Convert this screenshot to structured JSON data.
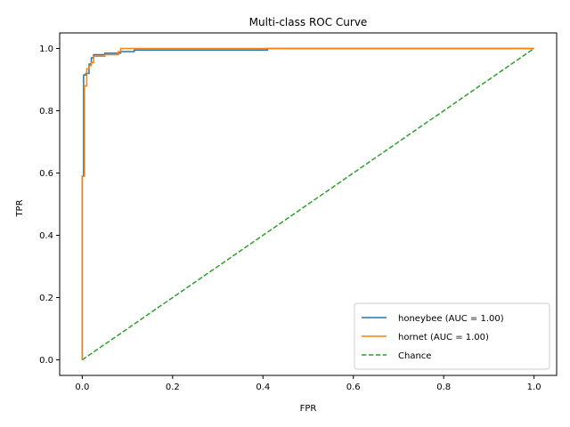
{
  "chart_data": {
    "type": "line",
    "title": "Multi-class ROC Curve",
    "xlabel": "FPR",
    "ylabel": "TPR",
    "xlim": [
      -0.05,
      1.05
    ],
    "ylim": [
      -0.05,
      1.05
    ],
    "xticks": [
      "0.0",
      "0.2",
      "0.4",
      "0.6",
      "0.8",
      "1.0"
    ],
    "yticks": [
      "0.0",
      "0.2",
      "0.4",
      "0.6",
      "0.8",
      "1.0"
    ],
    "grid": false,
    "legend_position": "lower-right",
    "series": [
      {
        "name": "honeybee (AUC = 1.00)",
        "color": "#1f77b4",
        "style": "solid",
        "points": [
          [
            0,
            0
          ],
          [
            0,
            0.59
          ],
          [
            0.003,
            0.59
          ],
          [
            0.003,
            0.915
          ],
          [
            0.008,
            0.915
          ],
          [
            0.008,
            0.92
          ],
          [
            0.015,
            0.92
          ],
          [
            0.015,
            0.95
          ],
          [
            0.02,
            0.95
          ],
          [
            0.02,
            0.97
          ],
          [
            0.025,
            0.97
          ],
          [
            0.025,
            0.98
          ],
          [
            0.05,
            0.98
          ],
          [
            0.05,
            0.985
          ],
          [
            0.085,
            0.985
          ],
          [
            0.085,
            0.99
          ],
          [
            0.115,
            0.99
          ],
          [
            0.115,
            0.995
          ],
          [
            0.41,
            0.995
          ],
          [
            0.41,
            1.0
          ],
          [
            1.0,
            1.0
          ]
        ]
      },
      {
        "name": "hornet (AUC = 1.00)",
        "color": "#ff7f0e",
        "style": "solid",
        "points": [
          [
            0,
            0
          ],
          [
            0,
            0.59
          ],
          [
            0.005,
            0.59
          ],
          [
            0.005,
            0.88
          ],
          [
            0.01,
            0.88
          ],
          [
            0.01,
            0.935
          ],
          [
            0.015,
            0.935
          ],
          [
            0.015,
            0.945
          ],
          [
            0.02,
            0.945
          ],
          [
            0.02,
            0.955
          ],
          [
            0.025,
            0.955
          ],
          [
            0.025,
            0.975
          ],
          [
            0.05,
            0.975
          ],
          [
            0.05,
            0.98
          ],
          [
            0.08,
            0.98
          ],
          [
            0.08,
            0.99
          ],
          [
            0.085,
            0.99
          ],
          [
            0.085,
            1.0
          ],
          [
            1.0,
            1.0
          ]
        ]
      },
      {
        "name": "Chance",
        "color": "#2ca02c",
        "style": "dashed",
        "points": [
          [
            0,
            0
          ],
          [
            1,
            1
          ]
        ]
      }
    ]
  }
}
